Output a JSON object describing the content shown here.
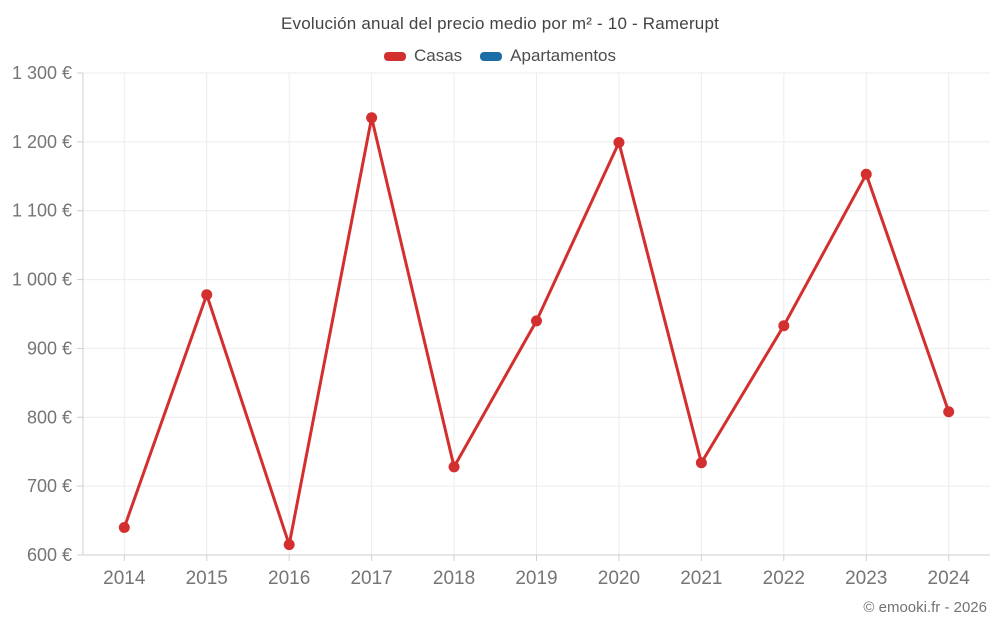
{
  "header": {
    "title": "Evolución anual del precio medio por m² - 10 - Ramerupt"
  },
  "legend": {
    "items": [
      {
        "label": "Casas",
        "color": "#d32f2f"
      },
      {
        "label": "Apartamentos",
        "color": "#1b6ea5"
      }
    ]
  },
  "footer": {
    "credit": "© emooki.fr - 2026"
  },
  "chart_data": {
    "type": "line",
    "title": "Evolución anual del precio medio por m² - 10 - Ramerupt",
    "x": [
      2014,
      2015,
      2016,
      2017,
      2018,
      2019,
      2020,
      2021,
      2022,
      2023,
      2024
    ],
    "series": [
      {
        "name": "Casas",
        "color": "#d32f2f",
        "values": [
          640,
          978,
          615,
          1235,
          728,
          940,
          1199,
          734,
          933,
          1153,
          808
        ]
      },
      {
        "name": "Apartamentos",
        "color": "#1b6ea5",
        "values": []
      }
    ],
    "ylim": [
      600,
      1300
    ],
    "ytick_step": 100,
    "ytick_suffix": "€",
    "grid": true,
    "legend_position": "top",
    "colors": {
      "gridline": "#ececec",
      "axis": "#cfcfcf",
      "tick_label": "#757575"
    }
  }
}
